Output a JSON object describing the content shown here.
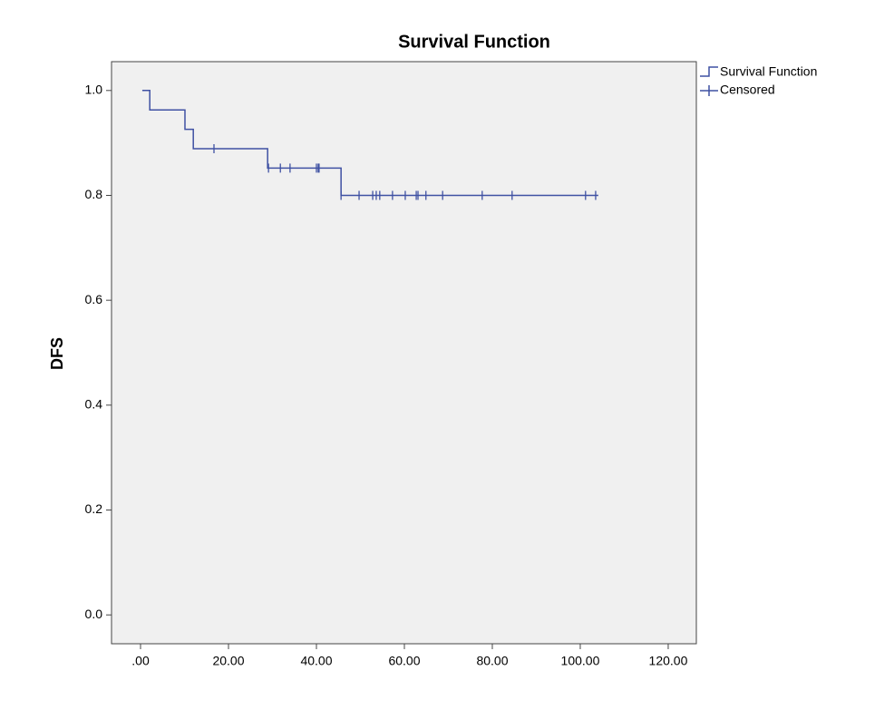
{
  "chart_data": {
    "type": "line",
    "step": true,
    "title": "Survival Function",
    "y_label": "DFS",
    "xlim": [
      -6.6,
      126.4
    ],
    "xticks": [
      {
        "value": 0,
        "label": ".00"
      },
      {
        "value": 20,
        "label": "20.00"
      },
      {
        "value": 40,
        "label": "40.00"
      },
      {
        "value": 60,
        "label": "60.00"
      },
      {
        "value": 80,
        "label": "80.00"
      },
      {
        "value": 100,
        "label": "100.00"
      },
      {
        "value": 120,
        "label": "120.00"
      }
    ],
    "ylim": [
      -0.055,
      1.055
    ],
    "yticks": [
      {
        "value": 0,
        "label": "0.0"
      },
      {
        "value": 0.2,
        "label": "0.2"
      },
      {
        "value": 0.4,
        "label": "0.4"
      },
      {
        "value": 0.6,
        "label": "0.6"
      },
      {
        "value": 0.8,
        "label": "0.8"
      },
      {
        "value": 1,
        "label": "1.0"
      }
    ],
    "grid": false,
    "legend": "right",
    "background": "#f0f0f0",
    "series": [
      {
        "name": "Survival Function",
        "color": "#3f51a3",
        "x": [
          0.4,
          2.1,
          10.1,
          12.0,
          28.9,
          45.6,
          104.1
        ],
        "values": [
          1.0,
          0.963,
          0.926,
          0.889,
          0.852,
          0.8,
          0.8
        ]
      },
      {
        "name": "Censored",
        "color": "#3f51a3",
        "marker": "+",
        "x": [
          16.7,
          29.1,
          31.8,
          34.0,
          40.0,
          40.4,
          40.6,
          45.6,
          49.7,
          52.8,
          53.6,
          54.4,
          57.3,
          60.2,
          62.7,
          63.1,
          64.9,
          68.7,
          77.7,
          84.5,
          101.2,
          103.5
        ],
        "values": [
          0.889,
          0.852,
          0.852,
          0.852,
          0.852,
          0.852,
          0.852,
          0.8,
          0.8,
          0.8,
          0.8,
          0.8,
          0.8,
          0.8,
          0.8,
          0.8,
          0.8,
          0.8,
          0.8,
          0.8,
          0.8,
          0.8
        ]
      }
    ]
  }
}
